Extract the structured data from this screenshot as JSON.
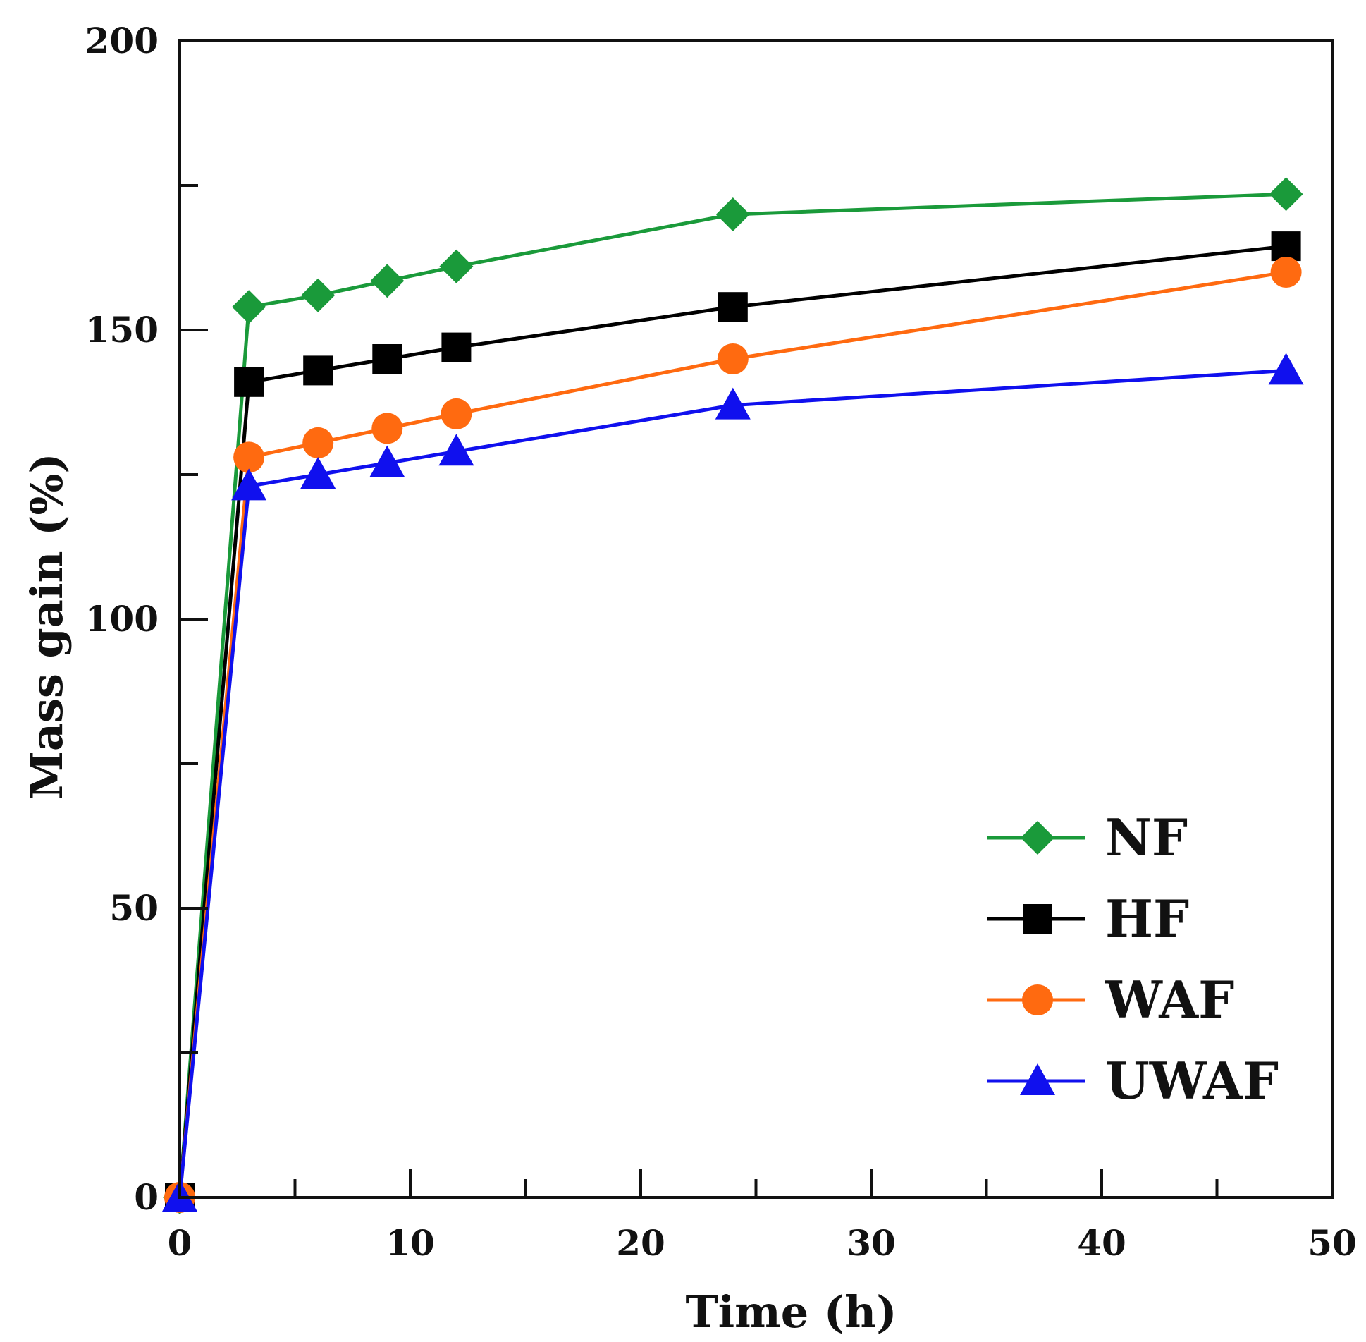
{
  "chart_data": {
    "type": "line",
    "title": "",
    "xlabel": "Time (h)",
    "ylabel": "Mass gain (%)",
    "xlim": [
      0,
      50
    ],
    "ylim": [
      0,
      200
    ],
    "x_major_ticks": [
      0,
      10,
      20,
      30,
      40,
      50
    ],
    "x_minor_ticks": [
      5,
      15,
      25,
      35,
      45
    ],
    "y_major_ticks": [
      0,
      50,
      100,
      150,
      200
    ],
    "y_minor_ticks": [
      25,
      75,
      125,
      175
    ],
    "x_tick_labels": [
      "0",
      "10",
      "20",
      "30",
      "40",
      "50"
    ],
    "y_tick_labels": [
      "0",
      "50",
      "100",
      "150",
      "200"
    ],
    "grid": false,
    "legend_position": "bottom-right",
    "x": [
      0,
      3,
      6,
      9,
      12,
      24,
      48
    ],
    "series": [
      {
        "name": "NF",
        "color": "#1a9a3a",
        "marker": "diamond",
        "values": [
          0,
          154,
          156,
          158.5,
          161,
          170,
          173.5
        ]
      },
      {
        "name": "HF",
        "color": "#000000",
        "marker": "square",
        "values": [
          0,
          141,
          143,
          145,
          147,
          154,
          164.5
        ]
      },
      {
        "name": "WAF",
        "color": "#ff6a10",
        "marker": "circle",
        "values": [
          0,
          128,
          130.5,
          133,
          135.5,
          145,
          160
        ]
      },
      {
        "name": "UWAF",
        "color": "#1010ee",
        "marker": "triangle",
        "values": [
          0,
          123,
          125,
          127,
          129,
          137,
          143
        ]
      }
    ]
  }
}
